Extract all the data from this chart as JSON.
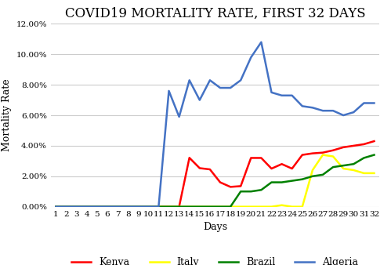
{
  "title": "COVID19 MORTALITY RATE, FIRST 32 DAYS",
  "xlabel": "Days",
  "ylabel": "Mortality Rate",
  "days": [
    1,
    2,
    3,
    4,
    5,
    6,
    7,
    8,
    9,
    10,
    11,
    12,
    13,
    14,
    15,
    16,
    17,
    18,
    19,
    20,
    21,
    22,
    23,
    24,
    25,
    26,
    27,
    28,
    29,
    30,
    31,
    32
  ],
  "kenya": [
    0.0,
    0.0,
    0.0,
    0.0,
    0.0,
    0.0,
    0.0,
    0.0,
    0.0,
    0.0,
    0.0,
    0.0,
    0.0,
    0.0321,
    0.0253,
    0.0245,
    0.016,
    0.013,
    0.0135,
    0.032,
    0.032,
    0.025,
    0.028,
    0.025,
    0.034,
    0.035,
    0.0355,
    0.037,
    0.039,
    0.04,
    0.041,
    0.043
  ],
  "italy": [
    0.0,
    0.0,
    0.0,
    0.0,
    0.0,
    0.0,
    0.0,
    0.0,
    0.0,
    0.0,
    0.0,
    0.0,
    0.0,
    0.0,
    0.0,
    0.0,
    0.0,
    0.0,
    0.0,
    0.0,
    0.0,
    0.0,
    0.001,
    0.0,
    0.0,
    0.024,
    0.034,
    0.033,
    0.025,
    0.024,
    0.022,
    0.022
  ],
  "brazil": [
    0.0,
    0.0,
    0.0,
    0.0,
    0.0,
    0.0,
    0.0,
    0.0,
    0.0,
    0.0,
    0.0,
    0.0,
    0.0,
    0.0,
    0.0,
    0.0,
    0.0,
    0.0,
    0.01,
    0.01,
    0.011,
    0.016,
    0.016,
    0.017,
    0.018,
    0.02,
    0.021,
    0.026,
    0.027,
    0.028,
    0.032,
    0.034
  ],
  "algeria": [
    0.0,
    0.0,
    0.0,
    0.0,
    0.0,
    0.0,
    0.0,
    0.0,
    0.0,
    0.0,
    0.0,
    0.076,
    0.059,
    0.083,
    0.07,
    0.083,
    0.078,
    0.078,
    0.083,
    0.098,
    0.108,
    0.075,
    0.073,
    0.073,
    0.066,
    0.065,
    0.063,
    0.063,
    0.06,
    0.062,
    0.068,
    0.068
  ],
  "kenya_color": "#FF0000",
  "italy_color": "#FFFF00",
  "brazil_color": "#008000",
  "algeria_color": "#4472C4",
  "ylim": [
    0.0,
    0.12
  ],
  "yticks": [
    0.0,
    0.02,
    0.04,
    0.06,
    0.08,
    0.1,
    0.12
  ],
  "ytick_labels": [
    "0.00%",
    "2.00%",
    "4.00%",
    "6.00%",
    "8.00%",
    "10.00%",
    "12.00%"
  ],
  "bg_color": "#FFFFFF",
  "grid_color": "#CCCCCC",
  "title_fontsize": 12,
  "axis_label_fontsize": 9,
  "tick_fontsize": 7.5,
  "legend_fontsize": 9,
  "linewidth": 1.8
}
